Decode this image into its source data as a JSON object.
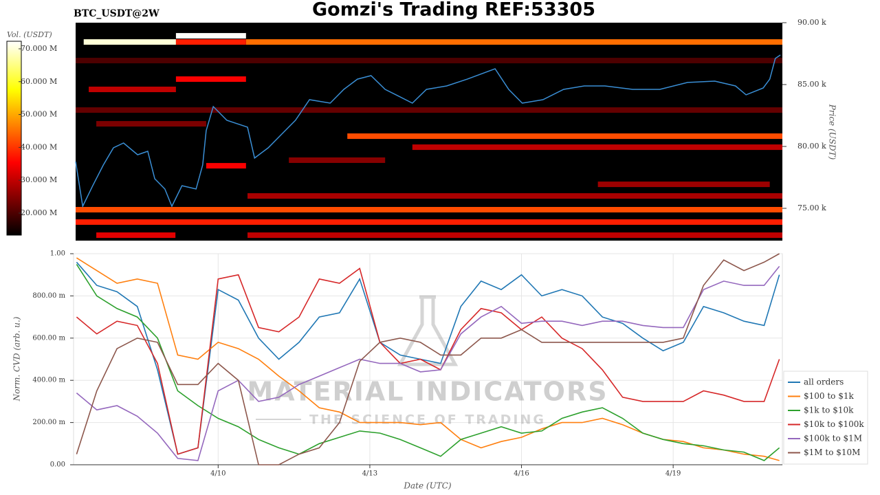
{
  "chart_data": [
    {
      "type": "heatmap",
      "title": "Gomzi's Trading REF:53305",
      "subtitle": "BTC_USDT@2W",
      "ylabel": "Price (USDT)",
      "xlim": [
        7.14,
        21.16
      ],
      "ylim": [
        72390,
        90000
      ],
      "yticks": [
        {
          "value": 75000,
          "label": "75.00 k"
        },
        {
          "value": 80000,
          "label": "80.00 k"
        },
        {
          "value": 85000,
          "label": "85.00 k"
        },
        {
          "value": 90000,
          "label": "90.00 k"
        }
      ],
      "colorbar": {
        "label": "Vol. (USDT)",
        "lim": [
          13300000,
          72300000
        ],
        "ticks": [
          {
            "value": 20000000,
            "label": "20.000 M"
          },
          {
            "value": 30000000,
            "label": "30.000 M"
          },
          {
            "value": 40000000,
            "label": "40.000 M"
          },
          {
            "value": 50000000,
            "label": "50.000 M"
          },
          {
            "value": 60000000,
            "label": "60.000 M"
          },
          {
            "value": 70000000,
            "label": "70.000 M"
          }
        ]
      },
      "bands": [
        {
          "price": 88440,
          "x0": 7.3,
          "x1": 9.13,
          "volume": 70000000
        },
        {
          "price": 88940,
          "x0": 9.13,
          "x1": 10.52,
          "volume": 72000000
        },
        {
          "price": 88440,
          "x0": 10.52,
          "x1": 21.16,
          "volume": 45000000
        },
        {
          "price": 88440,
          "x0": 9.13,
          "x1": 10.52,
          "volume": 38000000
        },
        {
          "price": 86940,
          "x0": 7.14,
          "x1": 21.16,
          "volume": 20000000
        },
        {
          "price": 84610,
          "x0": 7.4,
          "x1": 9.13,
          "volume": 30000000
        },
        {
          "price": 85440,
          "x0": 9.13,
          "x1": 10.52,
          "volume": 35000000
        },
        {
          "price": 82940,
          "x0": 7.14,
          "x1": 21.16,
          "volume": 22000000
        },
        {
          "price": 81830,
          "x0": 7.55,
          "x1": 9.73,
          "volume": 24000000
        },
        {
          "price": 80830,
          "x0": 12.53,
          "x1": 21.16,
          "volume": 42000000
        },
        {
          "price": 79940,
          "x0": 13.82,
          "x1": 21.16,
          "volume": 30000000
        },
        {
          "price": 78440,
          "x0": 9.73,
          "x1": 10.52,
          "volume": 35000000
        },
        {
          "price": 78890,
          "x0": 11.37,
          "x1": 13.28,
          "volume": 25000000
        },
        {
          "price": 76940,
          "x0": 17.5,
          "x1": 20.91,
          "volume": 27000000
        },
        {
          "price": 76000,
          "x0": 10.55,
          "x1": 21.16,
          "volume": 28000000
        },
        {
          "price": 74890,
          "x0": 7.14,
          "x1": 21.16,
          "volume": 42000000
        },
        {
          "price": 73890,
          "x0": 7.14,
          "x1": 21.16,
          "volume": 38000000
        },
        {
          "price": 72830,
          "x0": 7.55,
          "x1": 9.12,
          "volume": 33000000
        },
        {
          "price": 72830,
          "x0": 10.55,
          "x1": 21.16,
          "volume": 30000000
        }
      ],
      "color": "#3a8fd6",
      "x": [
        7.14,
        7.28,
        7.48,
        7.69,
        7.89,
        8.09,
        8.37,
        8.57,
        8.71,
        8.91,
        9.05,
        9.25,
        9.53,
        9.66,
        9.73,
        9.87,
        10.14,
        10.55,
        10.69,
        10.96,
        11.23,
        11.5,
        11.78,
        12.19,
        12.46,
        12.73,
        13.0,
        13.28,
        13.55,
        13.82,
        14.1,
        14.5,
        14.91,
        15.46,
        15.73,
        16.0,
        16.41,
        16.82,
        17.23,
        17.64,
        18.19,
        18.73,
        19.28,
        19.82,
        20.23,
        20.44,
        20.78,
        20.91,
        21.02,
        21.12
      ],
      "values": [
        78780,
        75170,
        76830,
        78500,
        79890,
        80280,
        79330,
        79610,
        77390,
        76560,
        75170,
        76830,
        76560,
        78500,
        81280,
        83220,
        82110,
        81560,
        79060,
        79890,
        81000,
        82110,
        83780,
        83500,
        84610,
        85440,
        85720,
        84610,
        84060,
        83500,
        84610,
        84890,
        85440,
        86280,
        84610,
        83500,
        83780,
        84610,
        84890,
        84890,
        84610,
        84610,
        85170,
        85280,
        84890,
        84170,
        84720,
        85440,
        87110,
        87390
      ]
    },
    {
      "type": "line",
      "ylabel": "Norm. CVD (arb. u.)",
      "xlabel": "Date (UTC)",
      "watermark": {
        "title": "MATERIAL INDICATORS",
        "subtitle": "THE SCIENCE OF TRADING"
      },
      "xlim": [
        7.14,
        21.16
      ],
      "ylim": [
        0,
        1
      ],
      "xticks": [
        {
          "value": 10,
          "label": "4/10"
        },
        {
          "value": 13,
          "label": "4/13"
        },
        {
          "value": 16,
          "label": "4/16"
        },
        {
          "value": 19,
          "label": "4/19"
        }
      ],
      "yticks": [
        {
          "value": 0,
          "label": "0.00"
        },
        {
          "value": 0.2,
          "label": "200.00 m"
        },
        {
          "value": 0.4,
          "label": "400.00 m"
        },
        {
          "value": 0.6,
          "label": "600.00 m"
        },
        {
          "value": 0.8,
          "label": "800.00 m"
        },
        {
          "value": 1,
          "label": "1.00"
        }
      ],
      "grid": true,
      "legend": "right",
      "x": [
        7.2,
        7.6,
        8.0,
        8.4,
        8.8,
        9.2,
        9.6,
        10.0,
        10.4,
        10.8,
        11.2,
        11.6,
        12.0,
        12.4,
        12.8,
        13.2,
        13.6,
        14.0,
        14.4,
        14.8,
        15.2,
        15.6,
        16.0,
        16.4,
        16.8,
        17.2,
        17.6,
        18.0,
        18.4,
        18.8,
        19.2,
        19.6,
        20.0,
        20.4,
        20.8,
        21.1
      ],
      "series": [
        {
          "name": "all orders",
          "color": "#1f77b4",
          "values": [
            0.96,
            0.85,
            0.82,
            0.75,
            0.45,
            0.05,
            0.08,
            0.83,
            0.78,
            0.6,
            0.5,
            0.58,
            0.7,
            0.72,
            0.88,
            0.58,
            0.52,
            0.5,
            0.48,
            0.75,
            0.87,
            0.83,
            0.9,
            0.8,
            0.83,
            0.8,
            0.7,
            0.67,
            0.6,
            0.54,
            0.58,
            0.75,
            0.72,
            0.68,
            0.66,
            0.9
          ]
        },
        {
          "name": "$100 to $1k",
          "color": "#ff7f0e",
          "values": [
            0.98,
            0.92,
            0.86,
            0.88,
            0.86,
            0.52,
            0.5,
            0.58,
            0.55,
            0.5,
            0.42,
            0.35,
            0.27,
            0.25,
            0.2,
            0.2,
            0.2,
            0.19,
            0.2,
            0.12,
            0.08,
            0.11,
            0.13,
            0.17,
            0.2,
            0.2,
            0.22,
            0.19,
            0.15,
            0.12,
            0.11,
            0.08,
            0.07,
            0.05,
            0.04,
            0.02
          ]
        },
        {
          "name": "$1k to $10k",
          "color": "#2ca02c",
          "values": [
            0.95,
            0.8,
            0.74,
            0.7,
            0.6,
            0.35,
            0.28,
            0.22,
            0.18,
            0.12,
            0.08,
            0.05,
            0.1,
            0.13,
            0.16,
            0.15,
            0.12,
            0.08,
            0.04,
            0.12,
            0.15,
            0.18,
            0.15,
            0.16,
            0.22,
            0.25,
            0.27,
            0.22,
            0.15,
            0.12,
            0.1,
            0.09,
            0.07,
            0.06,
            0.02,
            0.08
          ]
        },
        {
          "name": "$10k to $100k",
          "color": "#d62728",
          "values": [
            0.7,
            0.62,
            0.68,
            0.66,
            0.48,
            0.05,
            0.08,
            0.88,
            0.9,
            0.65,
            0.63,
            0.7,
            0.88,
            0.86,
            0.93,
            0.58,
            0.48,
            0.5,
            0.45,
            0.64,
            0.74,
            0.72,
            0.64,
            0.7,
            0.6,
            0.55,
            0.45,
            0.32,
            0.3,
            0.3,
            0.3,
            0.35,
            0.33,
            0.3,
            0.3,
            0.5
          ]
        },
        {
          "name": "$100k to $1M",
          "color": "#9467bd",
          "values": [
            0.34,
            0.26,
            0.28,
            0.23,
            0.15,
            0.03,
            0.02,
            0.35,
            0.4,
            0.3,
            0.32,
            0.38,
            0.42,
            0.46,
            0.5,
            0.48,
            0.48,
            0.44,
            0.45,
            0.62,
            0.7,
            0.75,
            0.67,
            0.68,
            0.68,
            0.66,
            0.68,
            0.68,
            0.66,
            0.65,
            0.65,
            0.83,
            0.87,
            0.85,
            0.85,
            0.94
          ]
        },
        {
          "name": "$1M to $10M",
          "color": "#8c564b",
          "values": [
            0.05,
            0.35,
            0.55,
            0.6,
            0.58,
            0.38,
            0.38,
            0.48,
            0.4,
            0.0,
            0.0,
            0.05,
            0.08,
            0.2,
            0.49,
            0.58,
            0.6,
            0.58,
            0.52,
            0.52,
            0.6,
            0.6,
            0.64,
            0.58,
            0.58,
            0.58,
            0.58,
            0.58,
            0.58,
            0.58,
            0.6,
            0.85,
            0.97,
            0.92,
            0.96,
            1.0
          ]
        }
      ]
    }
  ]
}
